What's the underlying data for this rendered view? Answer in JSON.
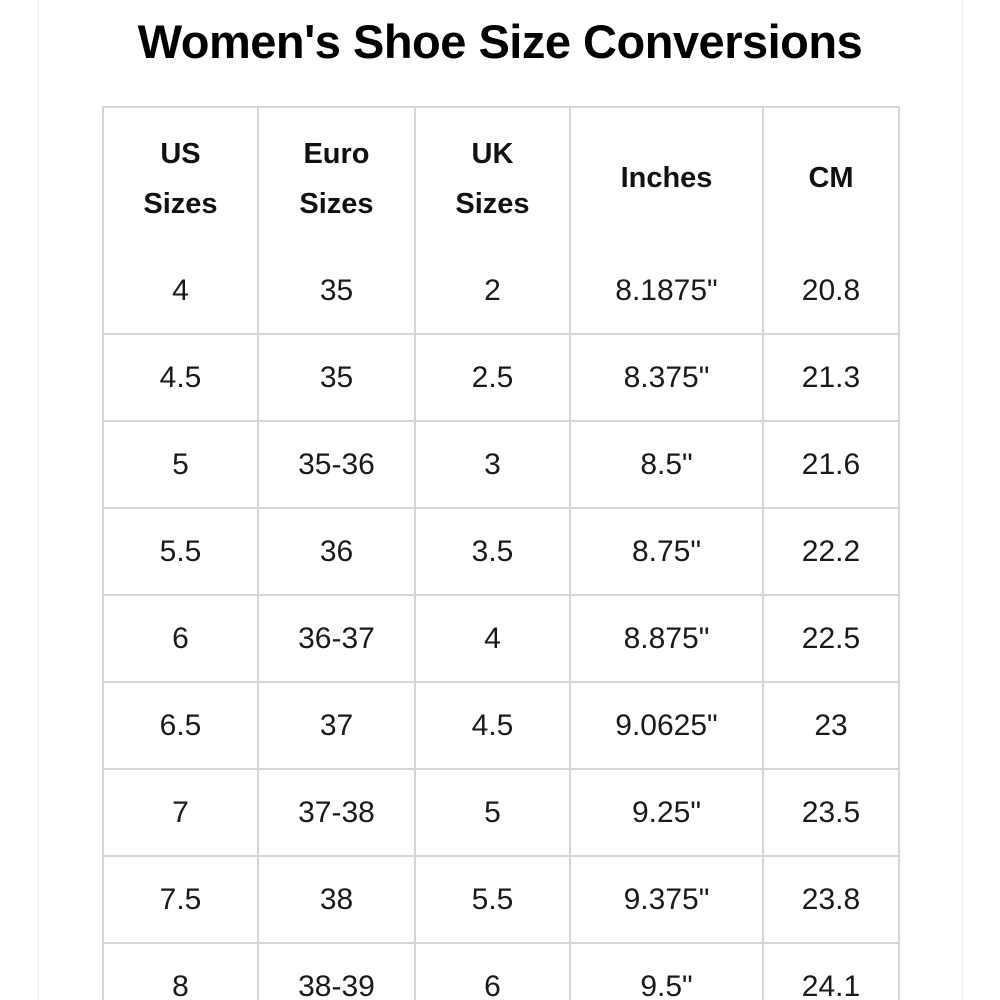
{
  "title": "Women's Shoe Size Conversions",
  "table": {
    "headers": [
      [
        "US",
        "Sizes"
      ],
      [
        "Euro",
        "Sizes"
      ],
      [
        "UK",
        "Sizes"
      ],
      [
        "Inches"
      ],
      [
        "CM"
      ]
    ],
    "rows": [
      [
        "4",
        "35",
        "2",
        "8.1875\"",
        "20.8"
      ],
      [
        "4.5",
        "35",
        "2.5",
        "8.375\"",
        "21.3"
      ],
      [
        "5",
        "35-36",
        "3",
        "8.5\"",
        "21.6"
      ],
      [
        "5.5",
        "36",
        "3.5",
        "8.75\"",
        "22.2"
      ],
      [
        "6",
        "36-37",
        "4",
        "8.875\"",
        "22.5"
      ],
      [
        "6.5",
        "37",
        "4.5",
        "9.0625\"",
        "23"
      ],
      [
        "7",
        "37-38",
        "5",
        "9.25\"",
        "23.5"
      ],
      [
        "7.5",
        "38",
        "5.5",
        "9.375\"",
        "23.8"
      ],
      [
        "8",
        "38-39",
        "6",
        "9.5\"",
        "24.1"
      ]
    ]
  },
  "colors": {
    "border": "#d6d6d6",
    "text": "#111111",
    "background": "#ffffff"
  }
}
